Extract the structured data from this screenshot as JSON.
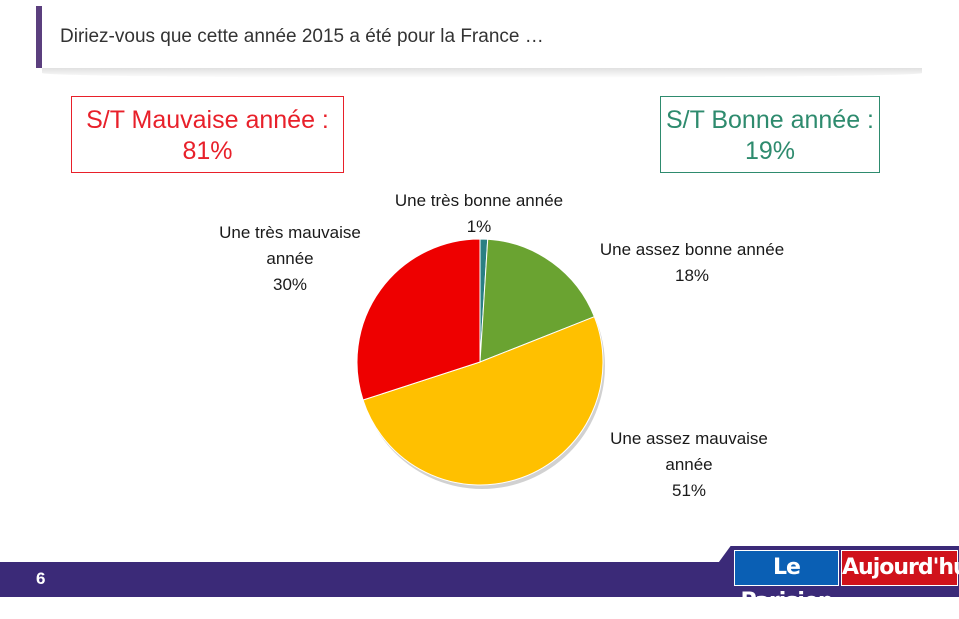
{
  "header": {
    "title": "Diriez-vous que cette année 2015 a été pour la France …"
  },
  "summary": {
    "bad": {
      "line1": "S/T Mauvaise année :",
      "line2": "81%"
    },
    "good": {
      "line1": "S/T Bonne année :",
      "line2": "19%"
    }
  },
  "chart_data": {
    "type": "pie",
    "slices": [
      {
        "label_lines": [
          "Une très bonne année"
        ],
        "value": 1,
        "value_label": "1%",
        "color": "#2a7f83"
      },
      {
        "label_lines": [
          "Une assez bonne année"
        ],
        "value": 18,
        "value_label": "18%",
        "color": "#6aa331"
      },
      {
        "label_lines": [
          "Une assez mauvaise",
          "année"
        ],
        "value": 51,
        "value_label": "51%",
        "color": "#ffc000"
      },
      {
        "label_lines": [
          "Une très mauvaise",
          "année"
        ],
        "value": 30,
        "value_label": "30%",
        "color": "#ee0000"
      }
    ]
  },
  "footer": {
    "page_number": "6",
    "logo_left": "Le Parisien",
    "logo_right": "Aujourd'hui"
  }
}
